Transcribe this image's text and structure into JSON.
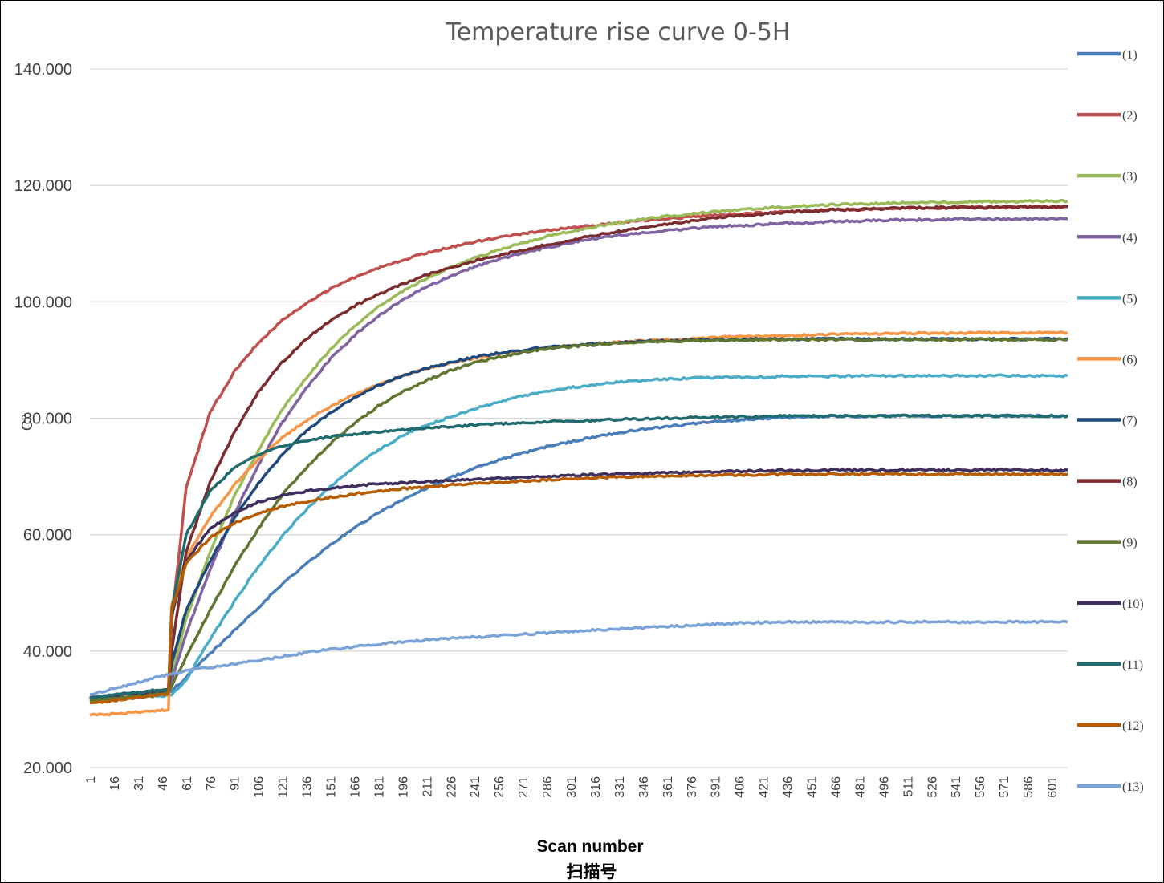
{
  "chart_data": {
    "type": "line",
    "title": "Temperature rise curve 0-5H",
    "xlabel": "Scan number",
    "xlabel_cn": "扫描号",
    "ylabel": "C°",
    "ylim": [
      20,
      140
    ],
    "yticks": [
      "20.000",
      "40.000",
      "60.000",
      "80.000",
      "100.000",
      "120.000",
      "140.000"
    ],
    "xlim": [
      1,
      611
    ],
    "xticks": [
      "1",
      "16",
      "31",
      "46",
      "61",
      "76",
      "91",
      "106",
      "121",
      "136",
      "151",
      "166",
      "181",
      "196",
      "211",
      "226",
      "241",
      "256",
      "271",
      "286",
      "301",
      "316",
      "331",
      "346",
      "361",
      "376",
      "391",
      "406",
      "421",
      "436",
      "451",
      "466",
      "481",
      "496",
      "511",
      "526",
      "541",
      "556",
      "571",
      "586",
      "601"
    ],
    "grid": "horizontal",
    "legend_position": "right",
    "x": [
      1,
      16,
      31,
      46,
      50,
      52,
      61,
      76,
      91,
      106,
      121,
      136,
      151,
      166,
      181,
      196,
      211,
      226,
      241,
      256,
      271,
      286,
      301,
      316,
      331,
      346,
      361,
      376,
      391,
      406,
      421,
      436,
      451,
      466,
      481,
      496,
      511,
      526,
      541,
      556,
      571,
      586,
      601,
      611
    ],
    "series": [
      {
        "name": "(1)",
        "color": "#4A7EBB",
        "values": [
          32.0,
          32.3,
          32.7,
          33.0,
          33.1,
          33.2,
          35.5,
          39.5,
          43.5,
          47.5,
          51.5,
          55.0,
          58.2,
          61.2,
          63.7,
          66.0,
          68.0,
          69.8,
          71.4,
          72.8,
          74.0,
          75.1,
          76.0,
          76.8,
          77.5,
          78.1,
          78.6,
          79.0,
          79.4,
          79.7,
          80.0,
          80.1,
          80.2,
          80.3,
          80.3,
          80.4,
          80.4,
          80.4,
          80.4,
          80.4,
          80.4,
          80.4,
          80.4,
          80.4
        ]
      },
      {
        "name": "(2)",
        "color": "#C0504D",
        "values": [
          31.5,
          31.9,
          32.3,
          32.7,
          32.8,
          45.0,
          68.0,
          81.0,
          88.0,
          93.0,
          96.8,
          99.8,
          102.2,
          104.2,
          105.8,
          107.2,
          108.4,
          109.4,
          110.3,
          111.0,
          111.7,
          112.3,
          112.8,
          113.2,
          113.6,
          114.0,
          114.3,
          114.6,
          114.9,
          115.1,
          115.3,
          115.5,
          115.7,
          115.8,
          115.9,
          116.0,
          116.1,
          116.1,
          116.2,
          116.2,
          116.2,
          116.3,
          116.3,
          116.3
        ]
      },
      {
        "name": "(3)",
        "color": "#9BBB59",
        "values": [
          32.0,
          32.4,
          32.8,
          33.2,
          33.3,
          36.0,
          45.5,
          57.0,
          66.5,
          74.5,
          81.5,
          87.0,
          91.8,
          95.8,
          99.2,
          101.8,
          104.0,
          105.9,
          107.5,
          108.9,
          110.1,
          111.2,
          112.1,
          112.9,
          113.6,
          114.2,
          114.7,
          115.1,
          115.5,
          115.8,
          116.1,
          116.3,
          116.5,
          116.7,
          116.8,
          116.9,
          117.0,
          117.1,
          117.1,
          117.2,
          117.2,
          117.3,
          117.3,
          117.3
        ]
      },
      {
        "name": "(4)",
        "color": "#8064A2",
        "values": [
          32.0,
          32.4,
          32.8,
          33.2,
          33.3,
          35.0,
          43.0,
          54.0,
          63.5,
          72.0,
          79.2,
          85.2,
          90.2,
          94.2,
          97.6,
          100.4,
          102.6,
          104.4,
          106.0,
          107.3,
          108.4,
          109.3,
          110.2,
          110.9,
          111.4,
          111.9,
          112.3,
          112.6,
          112.9,
          113.1,
          113.3,
          113.5,
          113.6,
          113.8,
          113.9,
          114.0,
          114.1,
          114.1,
          114.2,
          114.2,
          114.2,
          114.2,
          114.3,
          114.3
        ]
      },
      {
        "name": "(5)",
        "color": "#4BACC6",
        "values": [
          31.5,
          31.8,
          32.0,
          32.3,
          32.4,
          32.6,
          35.0,
          42.0,
          48.5,
          54.5,
          59.8,
          64.3,
          68.3,
          71.6,
          74.5,
          77.0,
          78.8,
          80.2,
          81.6,
          82.8,
          83.8,
          84.6,
          85.3,
          85.8,
          86.2,
          86.5,
          86.7,
          86.9,
          87.0,
          87.1,
          87.1,
          87.2,
          87.2,
          87.2,
          87.3,
          87.3,
          87.3,
          87.3,
          87.3,
          87.3,
          87.3,
          87.3,
          87.3,
          87.3
        ]
      },
      {
        "name": "(6)",
        "color": "#F79646",
        "values": [
          29.0,
          29.2,
          29.5,
          29.8,
          30.0,
          48.0,
          56.0,
          63.0,
          68.5,
          73.0,
          76.6,
          79.6,
          82.0,
          84.1,
          85.8,
          87.3,
          88.5,
          89.5,
          90.3,
          91.0,
          91.6,
          92.1,
          92.5,
          92.8,
          93.1,
          93.3,
          93.5,
          93.7,
          93.9,
          94.0,
          94.1,
          94.2,
          94.3,
          94.4,
          94.5,
          94.5,
          94.6,
          94.6,
          94.6,
          94.7,
          94.7,
          94.7,
          94.7,
          94.7
        ]
      },
      {
        "name": "(7)",
        "color": "#1F497D",
        "values": [
          32.0,
          32.4,
          32.8,
          33.2,
          33.3,
          38.0,
          47.0,
          55.5,
          62.8,
          68.8,
          73.8,
          77.8,
          81.0,
          83.6,
          85.6,
          87.3,
          88.6,
          89.6,
          90.5,
          91.2,
          91.7,
          92.2,
          92.5,
          92.8,
          93.0,
          93.2,
          93.3,
          93.4,
          93.5,
          93.5,
          93.6,
          93.6,
          93.6,
          93.6,
          93.6,
          93.6,
          93.6,
          93.6,
          93.6,
          93.6,
          93.6,
          93.6,
          93.6,
          93.6
        ]
      },
      {
        "name": "(8)",
        "color": "#7B2C2E",
        "values": [
          32.0,
          32.4,
          32.8,
          33.2,
          33.3,
          40.0,
          57.0,
          69.0,
          77.5,
          84.5,
          89.6,
          93.6,
          96.8,
          99.3,
          101.3,
          103.1,
          104.6,
          105.9,
          107.0,
          108.0,
          108.9,
          109.8,
          110.6,
          111.4,
          112.1,
          112.8,
          113.4,
          113.9,
          114.4,
          114.8,
          115.1,
          115.4,
          115.6,
          115.8,
          115.9,
          116.0,
          116.1,
          116.2,
          116.2,
          116.2,
          116.3,
          116.3,
          116.3,
          116.3
        ]
      },
      {
        "name": "(9)",
        "color": "#5F7530",
        "values": [
          31.5,
          31.9,
          32.3,
          32.7,
          32.8,
          34.0,
          39.0,
          47.0,
          54.5,
          61.0,
          66.8,
          71.5,
          75.6,
          79.1,
          82.1,
          84.5,
          86.5,
          88.2,
          89.5,
          90.5,
          91.3,
          91.9,
          92.3,
          92.6,
          92.9,
          93.1,
          93.2,
          93.3,
          93.4,
          93.4,
          93.5,
          93.5,
          93.5,
          93.5,
          93.5,
          93.5,
          93.5,
          93.5,
          93.5,
          93.5,
          93.5,
          93.5,
          93.5,
          93.5
        ]
      },
      {
        "name": "(10)",
        "color": "#3F2F5E",
        "values": [
          32.0,
          32.4,
          32.8,
          33.2,
          33.3,
          46.0,
          55.5,
          61.0,
          63.8,
          65.6,
          66.7,
          67.5,
          68.0,
          68.4,
          68.7,
          68.9,
          69.1,
          69.3,
          69.5,
          69.7,
          69.8,
          70.0,
          70.2,
          70.3,
          70.4,
          70.5,
          70.6,
          70.7,
          70.8,
          70.9,
          71.0,
          71.0,
          71.0,
          71.1,
          71.1,
          71.1,
          71.1,
          71.1,
          71.1,
          71.1,
          71.1,
          71.1,
          71.1,
          71.1
        ]
      },
      {
        "name": "(11)",
        "color": "#1F6B6E",
        "values": [
          32.0,
          32.5,
          32.9,
          33.4,
          33.5,
          47.0,
          60.0,
          67.5,
          71.5,
          73.8,
          75.2,
          76.1,
          76.8,
          77.3,
          77.7,
          78.0,
          78.3,
          78.6,
          78.8,
          79.0,
          79.2,
          79.4,
          79.5,
          79.6,
          79.8,
          79.9,
          80.0,
          80.1,
          80.2,
          80.3,
          80.3,
          80.4,
          80.4,
          80.4,
          80.4,
          80.4,
          80.4,
          80.4,
          80.4,
          80.4,
          80.4,
          80.4,
          80.4,
          80.4
        ]
      },
      {
        "name": "(12)",
        "color": "#B85C00",
        "values": [
          31.0,
          31.5,
          32.0,
          32.5,
          32.7,
          47.0,
          55.0,
          59.5,
          62.0,
          63.7,
          64.8,
          65.7,
          66.4,
          67.0,
          67.5,
          67.9,
          68.2,
          68.5,
          68.8,
          69.0,
          69.2,
          69.4,
          69.6,
          69.8,
          69.9,
          70.0,
          70.1,
          70.2,
          70.2,
          70.3,
          70.3,
          70.4,
          70.4,
          70.4,
          70.4,
          70.4,
          70.4,
          70.4,
          70.4,
          70.4,
          70.4,
          70.4,
          70.4,
          70.4
        ]
      },
      {
        "name": "(13)",
        "color": "#7BA3D8",
        "values": [
          32.5,
          33.6,
          34.6,
          35.7,
          36.0,
          36.1,
          36.6,
          37.2,
          37.8,
          38.4,
          39.0,
          39.7,
          40.3,
          40.8,
          41.2,
          41.6,
          41.9,
          42.2,
          42.4,
          42.6,
          42.9,
          43.1,
          43.4,
          43.6,
          43.8,
          44.0,
          44.2,
          44.4,
          44.6,
          44.8,
          44.9,
          45.0,
          45.0,
          45.0,
          45.0,
          45.0,
          45.0,
          45.0,
          45.0,
          45.0,
          45.0,
          45.0,
          45.0,
          45.0
        ]
      }
    ]
  }
}
